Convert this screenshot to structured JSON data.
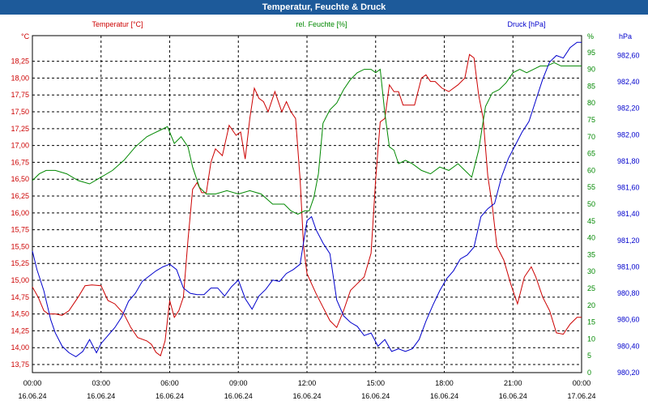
{
  "window": {
    "title": "Temperatur, Feuchte & Druck"
  },
  "chart_data": {
    "type": "line",
    "title": "Temperatur, Feuchte & Druck",
    "grid": true,
    "x_ticks": [
      {
        "time": "00:00",
        "date": "16.06.24"
      },
      {
        "time": "03:00",
        "date": "16.06.24"
      },
      {
        "time": "06:00",
        "date": "16.06.24"
      },
      {
        "time": "09:00",
        "date": "16.06.24"
      },
      {
        "time": "12:00",
        "date": "16.06.24"
      },
      {
        "time": "15:00",
        "date": "16.06.24"
      },
      {
        "time": "18:00",
        "date": "16.06.24"
      },
      {
        "time": "21:00",
        "date": "16.06.24"
      },
      {
        "time": "00:00",
        "date": "17.06.24"
      }
    ],
    "x_range_hours": [
      0,
      24
    ],
    "axes": {
      "temperature": {
        "label": "Temperatur [°C]",
        "unit": "°C",
        "ylim": [
          13.63,
          18.63
        ],
        "color": "#cc0000",
        "ticks": [
          "13,75",
          "14,00",
          "14,25",
          "14,50",
          "14,75",
          "15,00",
          "15,25",
          "15,50",
          "15,75",
          "16,00",
          "16,25",
          "16,50",
          "16,75",
          "17,00",
          "17,25",
          "17,50",
          "17,75",
          "18,00",
          "18,25"
        ]
      },
      "humidity": {
        "label": "rel. Feuchte [%]",
        "unit": "%",
        "ylim": [
          0,
          100
        ],
        "color": "#008800",
        "ticks": [
          "0",
          "5",
          "10",
          "15",
          "20",
          "25",
          "30",
          "35",
          "40",
          "45",
          "50",
          "55",
          "60",
          "65",
          "70",
          "75",
          "80",
          "85",
          "90",
          "95"
        ]
      },
      "pressure": {
        "label": "Druck [hPa]",
        "unit": "hPa",
        "ylim": [
          980.2,
          982.75
        ],
        "color": "#0000cc",
        "ticks": [
          "980,20",
          "980,40",
          "980,60",
          "980,80",
          "981,00",
          "981,20",
          "981,40",
          "981,60",
          "981,80",
          "982,00",
          "982,20",
          "982,40",
          "982,60"
        ]
      }
    },
    "series": [
      {
        "name": "Temperatur [°C]",
        "axis": "temperature",
        "color": "#cc0000",
        "x": [
          0,
          0.25,
          0.5,
          0.7,
          1.0,
          1.3,
          1.6,
          2.0,
          2.3,
          2.6,
          3.0,
          3.3,
          3.6,
          4.0,
          4.3,
          4.6,
          5.0,
          5.2,
          5.4,
          5.6,
          5.8,
          6.0,
          6.2,
          6.4,
          6.6,
          6.8,
          7.0,
          7.2,
          7.4,
          7.6,
          7.8,
          8.0,
          8.3,
          8.6,
          8.9,
          9.1,
          9.3,
          9.5,
          9.7,
          9.9,
          10.1,
          10.3,
          10.6,
          10.9,
          11.1,
          11.3,
          11.5,
          11.7,
          11.85,
          12.0,
          12.2,
          12.4,
          12.7,
          13.0,
          13.3,
          13.6,
          13.9,
          14.2,
          14.5,
          14.8,
          15.0,
          15.2,
          15.4,
          15.6,
          15.8,
          16.0,
          16.2,
          16.4,
          16.7,
          17.0,
          17.2,
          17.4,
          17.6,
          17.9,
          18.2,
          18.6,
          18.9,
          19.1,
          19.3,
          19.5,
          19.7,
          19.9,
          20.1,
          20.3,
          20.6,
          20.9,
          21.2,
          21.5,
          21.8,
          22.0,
          22.3,
          22.6,
          22.9,
          23.2,
          23.5,
          23.8,
          24.0
        ],
        "values": [
          14.9,
          14.75,
          14.55,
          14.5,
          14.5,
          14.48,
          14.55,
          14.75,
          14.92,
          14.93,
          14.92,
          14.7,
          14.65,
          14.5,
          14.3,
          14.15,
          14.1,
          14.05,
          13.93,
          13.88,
          14.1,
          14.7,
          14.45,
          14.55,
          14.75,
          15.6,
          16.35,
          16.45,
          16.3,
          16.3,
          16.75,
          16.95,
          16.85,
          17.3,
          17.15,
          17.2,
          16.8,
          17.4,
          17.85,
          17.7,
          17.65,
          17.5,
          17.8,
          17.5,
          17.65,
          17.5,
          17.4,
          16.5,
          15.5,
          15.1,
          14.95,
          14.8,
          14.6,
          14.4,
          14.3,
          14.55,
          14.85,
          14.95,
          15.05,
          15.4,
          16.5,
          17.35,
          17.4,
          17.9,
          17.8,
          17.8,
          17.6,
          17.6,
          17.6,
          18.0,
          18.05,
          17.95,
          17.95,
          17.85,
          17.8,
          17.9,
          18.0,
          18.35,
          18.3,
          17.75,
          17.4,
          16.55,
          16.1,
          15.5,
          15.3,
          14.95,
          14.65,
          15.05,
          15.2,
          15.05,
          14.75,
          14.55,
          14.22,
          14.2,
          14.35,
          14.45,
          14.45
        ]
      },
      {
        "name": "rel. Feuchte [%]",
        "axis": "humidity",
        "color": "#008800",
        "x": [
          0,
          0.3,
          0.6,
          1.0,
          1.5,
          2.0,
          2.5,
          3.0,
          3.5,
          4.0,
          4.5,
          5.0,
          5.3,
          5.6,
          5.9,
          6.2,
          6.5,
          6.8,
          7.0,
          7.3,
          7.6,
          8.0,
          8.5,
          9.0,
          9.5,
          10.0,
          10.5,
          11.0,
          11.3,
          11.6,
          11.9,
          12.1,
          12.3,
          12.5,
          12.7,
          13.0,
          13.3,
          13.6,
          13.9,
          14.2,
          14.5,
          14.8,
          15.0,
          15.2,
          15.4,
          15.6,
          15.8,
          16.0,
          16.3,
          16.6,
          17.0,
          17.4,
          17.8,
          18.2,
          18.6,
          18.9,
          19.2,
          19.5,
          19.8,
          20.1,
          20.4,
          20.7,
          21.0,
          21.3,
          21.6,
          21.9,
          22.2,
          22.5,
          22.8,
          23.1,
          23.4,
          23.7,
          24.0
        ],
        "values": [
          57,
          59,
          60,
          60,
          59,
          57,
          56,
          58,
          60,
          63,
          67,
          70,
          71,
          72,
          73,
          68,
          70,
          67,
          61,
          55,
          53,
          53,
          54,
          53,
          54,
          53,
          50,
          50,
          48,
          47,
          48,
          48,
          52,
          59,
          74,
          78,
          80,
          84,
          87,
          89,
          90,
          90,
          89,
          90,
          77,
          67,
          66,
          62,
          63,
          62,
          60,
          59,
          61,
          60,
          62,
          60,
          58,
          66,
          79,
          83,
          84,
          86,
          89,
          90,
          89,
          90,
          91,
          91,
          92,
          91,
          91,
          91,
          91
        ]
      },
      {
        "name": "Druck [hPa]",
        "axis": "pressure",
        "color": "#0000cc",
        "x": [
          0,
          0.2,
          0.5,
          0.8,
          1.0,
          1.3,
          1.6,
          1.9,
          2.2,
          2.5,
          2.8,
          3.0,
          3.3,
          3.6,
          3.9,
          4.2,
          4.5,
          4.8,
          5.1,
          5.4,
          5.7,
          6.0,
          6.3,
          6.6,
          6.9,
          7.2,
          7.5,
          7.8,
          8.1,
          8.4,
          8.7,
          9.0,
          9.3,
          9.6,
          9.9,
          10.2,
          10.5,
          10.8,
          11.1,
          11.4,
          11.7,
          12.0,
          12.2,
          12.4,
          12.7,
          13.0,
          13.3,
          13.6,
          13.9,
          14.2,
          14.5,
          14.8,
          15.1,
          15.4,
          15.7,
          16.0,
          16.3,
          16.6,
          16.9,
          17.2,
          17.5,
          17.8,
          18.1,
          18.4,
          18.7,
          19.0,
          19.3,
          19.6,
          19.9,
          20.2,
          20.5,
          20.8,
          21.1,
          21.4,
          21.7,
          22.0,
          22.3,
          22.6,
          22.9,
          23.2,
          23.5,
          23.8,
          24.0
        ],
        "values": [
          981.12,
          980.98,
          980.82,
          980.6,
          980.5,
          980.4,
          980.35,
          980.32,
          980.36,
          980.45,
          980.35,
          980.42,
          980.48,
          980.54,
          980.62,
          980.74,
          980.8,
          980.89,
          980.93,
          980.97,
          981.0,
          981.02,
          980.98,
          980.84,
          980.8,
          980.79,
          980.79,
          980.84,
          980.84,
          980.78,
          980.85,
          980.9,
          980.76,
          980.68,
          980.78,
          980.83,
          980.9,
          980.89,
          980.95,
          980.98,
          981.02,
          981.35,
          981.38,
          981.28,
          981.18,
          981.1,
          980.75,
          980.63,
          980.58,
          980.55,
          980.48,
          980.5,
          980.4,
          980.45,
          980.36,
          980.38,
          980.36,
          980.38,
          980.45,
          980.59,
          980.71,
          980.82,
          980.91,
          980.97,
          981.06,
          981.09,
          981.15,
          981.38,
          981.44,
          981.48,
          981.68,
          981.82,
          981.92,
          982.02,
          982.1,
          982.26,
          982.42,
          982.55,
          982.6,
          982.58,
          982.66,
          982.7,
          982.7
        ]
      }
    ]
  }
}
